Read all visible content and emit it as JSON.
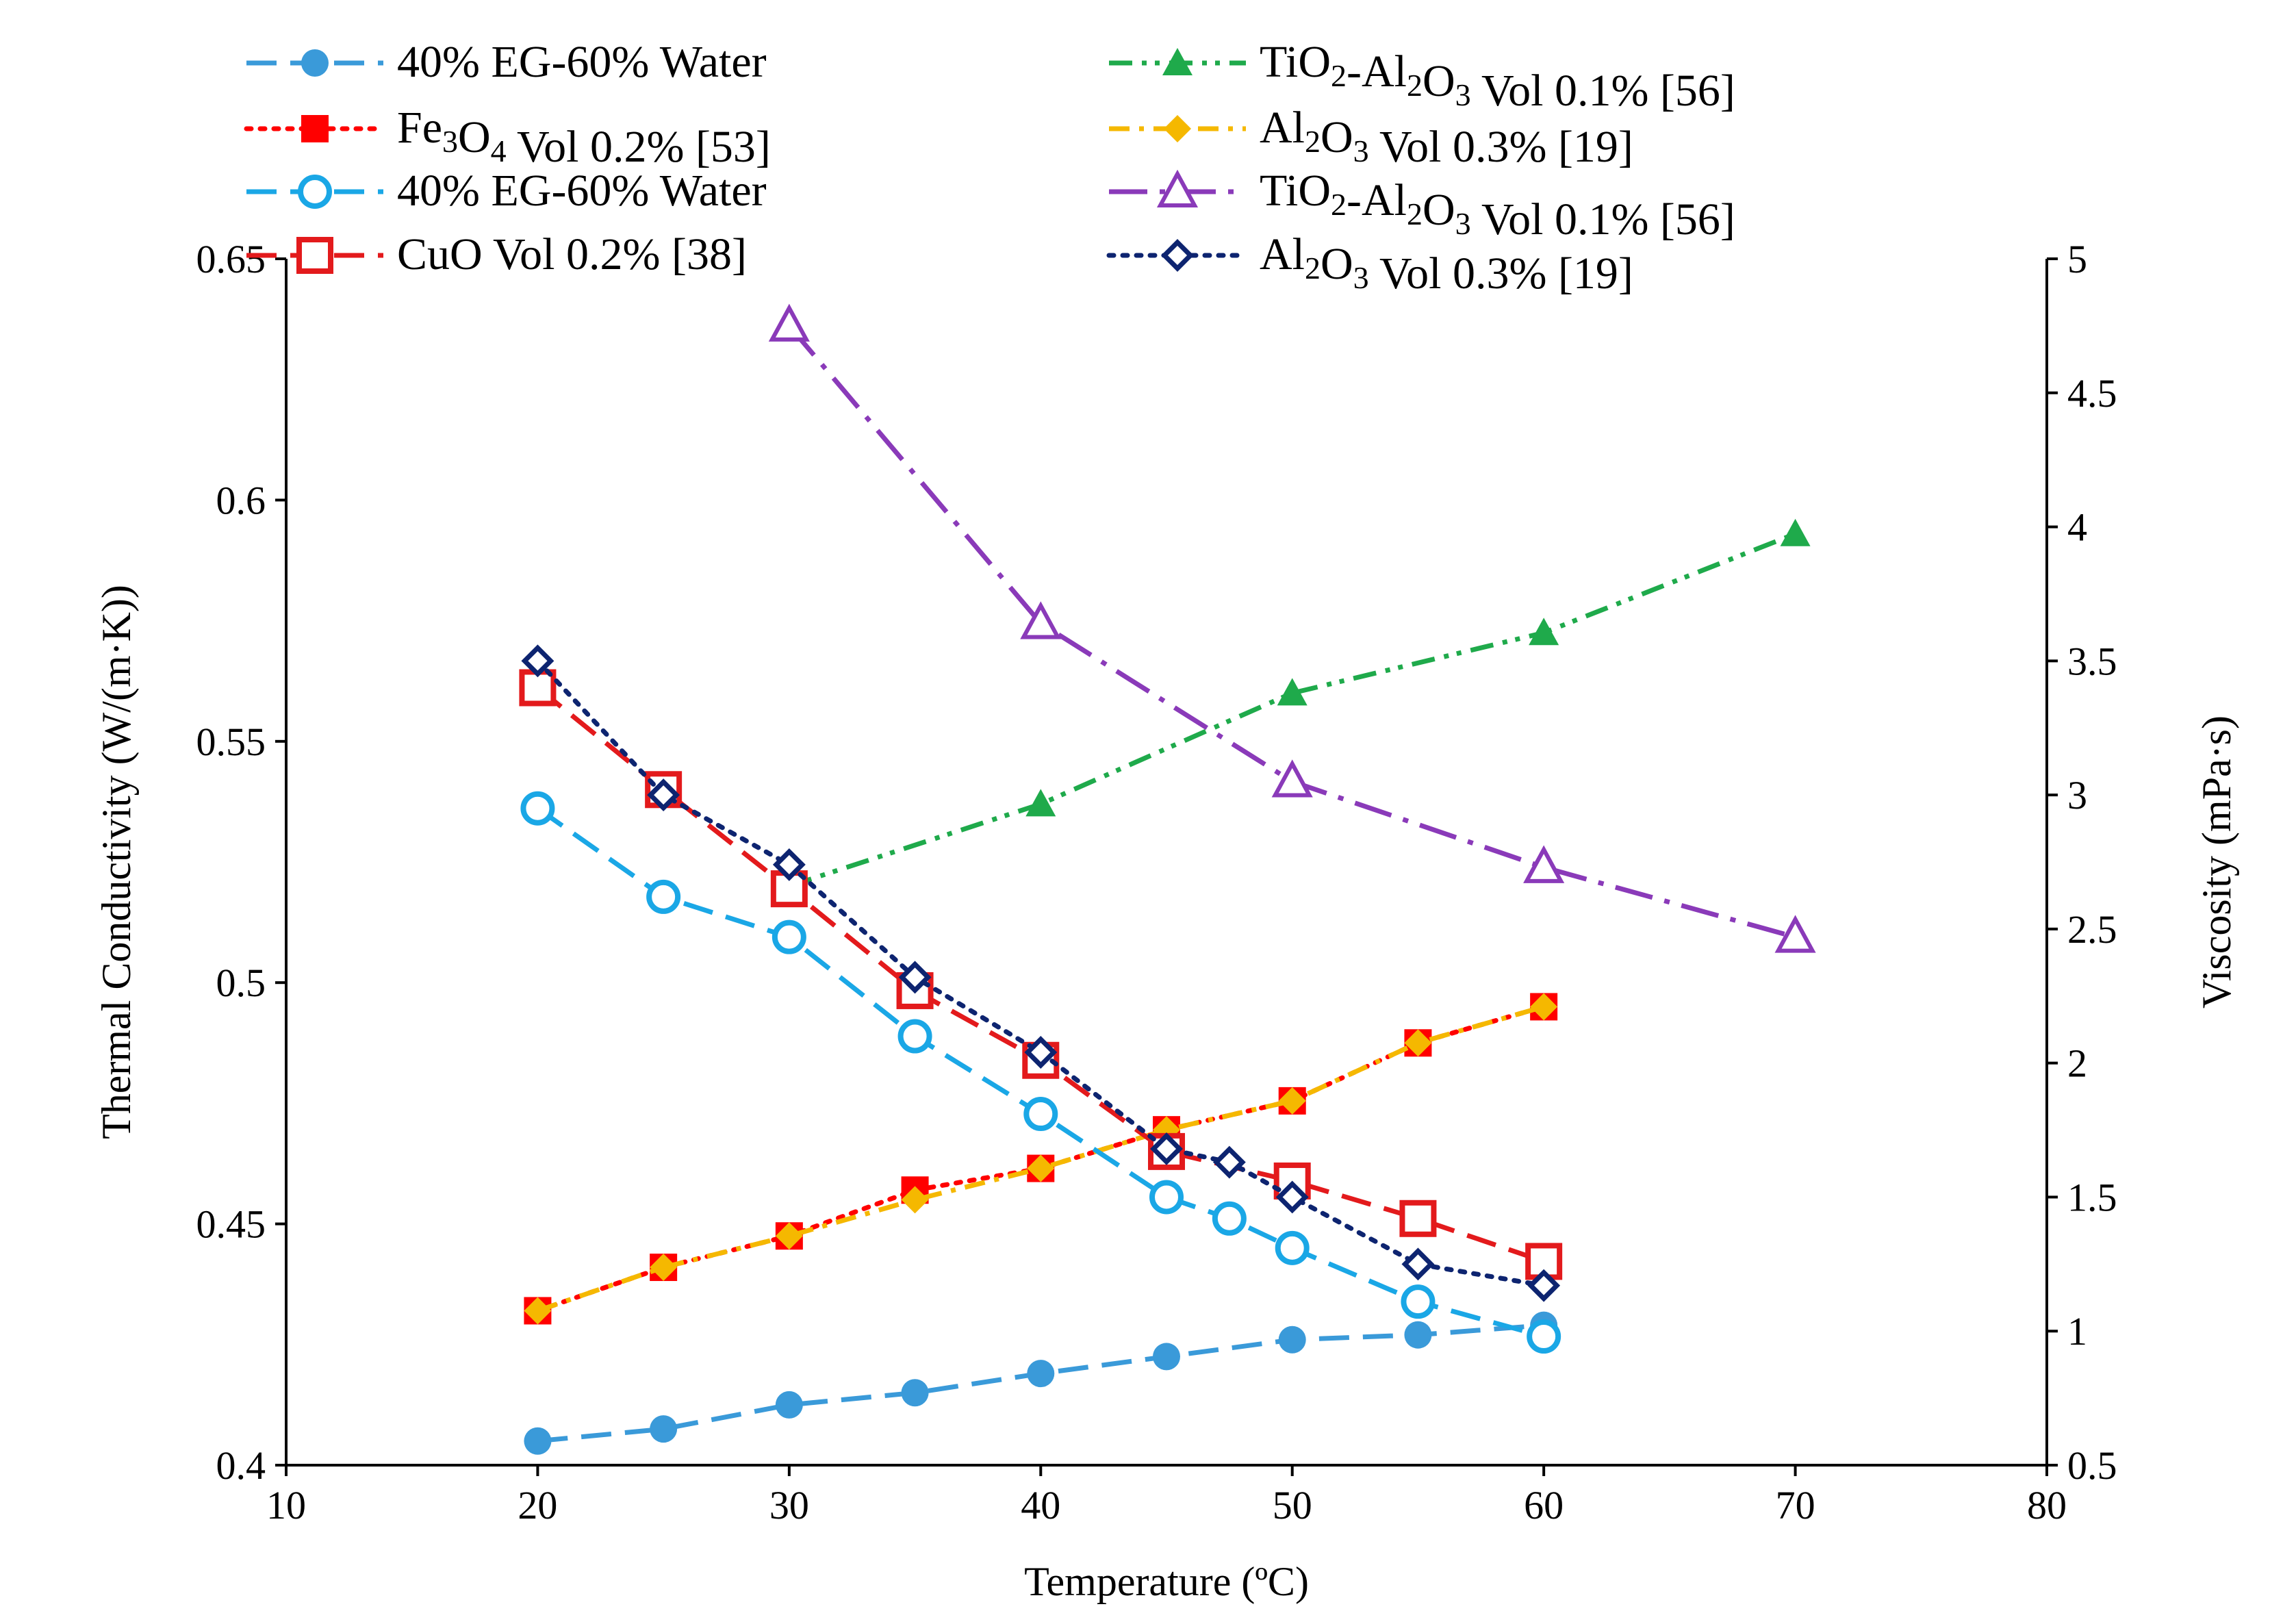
{
  "chart_data": {
    "type": "line",
    "title": "",
    "xlabel": "Temperature (ºC)",
    "ylabel": "Thermal Conductivity (W/(m·K))",
    "y2label": "Viscosity (mPa·s)",
    "xlim": [
      10,
      80
    ],
    "ylim": [
      0.4,
      0.65
    ],
    "y2lim": [
      0.5,
      5
    ],
    "x_ticks": [
      "10",
      "20",
      "30",
      "40",
      "50",
      "60",
      "70",
      "80"
    ],
    "y_ticks": [
      "0.4",
      "0.45",
      "0.5",
      "0.55",
      "0.6",
      "0.65"
    ],
    "y2_ticks": [
      "0.5",
      "1",
      "1.5",
      "2",
      "2.5",
      "3",
      "3.5",
      "4",
      "4.5",
      "5"
    ],
    "grid": false,
    "series": [
      {
        "name": "40% EG-60% Water",
        "axis": "left",
        "color": "#3a9ad9",
        "dash": "long-dash",
        "marker": "circle-filled",
        "x": [
          20,
          25,
          30,
          35,
          40,
          45,
          50,
          55,
          60
        ],
        "y": [
          0.405,
          0.4075,
          0.4125,
          0.415,
          0.419,
          0.4225,
          0.426,
          0.427,
          0.429
        ]
      },
      {
        "name": "Fe₃O₄ Vol 0.2% [53]",
        "axis": "left",
        "color": "#ff0000",
        "dash": "dot",
        "marker": "square-filled",
        "x": [
          20,
          25,
          30,
          35,
          40,
          45,
          50,
          55,
          60
        ],
        "y": [
          0.432,
          0.441,
          0.4475,
          0.457,
          0.4615,
          0.4695,
          0.4755,
          0.4875,
          0.495
        ]
      },
      {
        "name": "40% EG-60% Water",
        "axis": "right",
        "color": "#1aa7e6",
        "dash": "long-dash",
        "marker": "circle-open",
        "x": [
          20,
          25,
          30,
          35,
          40,
          45,
          47.5,
          50,
          55,
          60
        ],
        "y": [
          2.95,
          2.62,
          2.47,
          2.1,
          1.81,
          1.5,
          1.42,
          1.31,
          1.11,
          0.98
        ]
      },
      {
        "name": "CuO Vol 0.2% [38]",
        "axis": "right",
        "color": "#e31a1c",
        "dash": "long-dash",
        "marker": "square-open",
        "x": [
          20,
          25,
          30,
          35,
          40,
          45,
          50,
          55,
          60
        ],
        "y": [
          3.4,
          3.02,
          2.65,
          2.27,
          2.01,
          1.67,
          1.56,
          1.42,
          1.26
        ]
      },
      {
        "name": "TiO₂-Al₂O₃ Vol 0.1% [56]",
        "axis": "left",
        "color": "#1faa4b",
        "dash": "dash-dot-dot",
        "marker": "triangle-filled",
        "x": [
          30,
          40,
          50,
          60,
          70
        ],
        "y": [
          0.52,
          0.537,
          0.56,
          0.5725,
          0.593
        ]
      },
      {
        "name": "Al₂O₃ Vol 0.3% [19]",
        "axis": "left",
        "color": "#f5b800",
        "dash": "dash-dot",
        "marker": "diamond-filled",
        "x": [
          20,
          25,
          30,
          35,
          40,
          45,
          50,
          55,
          60
        ],
        "y": [
          0.432,
          0.441,
          0.4475,
          0.455,
          0.4615,
          0.4695,
          0.4755,
          0.4875,
          0.495
        ]
      },
      {
        "name": "TiO₂-Al₂O₃ Vol 0.1% [56]",
        "axis": "right",
        "color": "#8a3ab9",
        "dash": "long-dash-dot",
        "marker": "triangle-open",
        "x": [
          30,
          40,
          50,
          60,
          70
        ],
        "y": [
          4.75,
          3.64,
          3.05,
          2.73,
          2.47
        ]
      },
      {
        "name": "Al₂O₃ Vol 0.3% [19]",
        "axis": "right",
        "color": "#0d2470",
        "dash": "dot",
        "marker": "diamond-open",
        "x": [
          20,
          25,
          30,
          35,
          40,
          45,
          47.5,
          50,
          55,
          60
        ],
        "y": [
          3.5,
          3.0,
          2.74,
          2.32,
          2.04,
          1.68,
          1.63,
          1.5,
          1.25,
          1.17
        ]
      }
    ],
    "legend": {
      "placement": "top, two columns",
      "entries": [
        {
          "series": 0,
          "label": "40% EG-60% Water"
        },
        {
          "series": 1,
          "label": "Fe₃O₄ Vol 0.2% [53]"
        },
        {
          "series": 2,
          "label": "40% EG-60% Water"
        },
        {
          "series": 3,
          "label": "CuO Vol 0.2% [38]"
        },
        {
          "series": 4,
          "label": "TiO₂-Al₂O₃ Vol 0.1% [56]"
        },
        {
          "series": 5,
          "label": "Al₂O₃ Vol 0.3% [19]"
        },
        {
          "series": 6,
          "label": "TiO₂-Al₂O₃ Vol 0.1% [56]"
        },
        {
          "series": 7,
          "label": "Al₂O₃ Vol 0.3% [19]"
        }
      ]
    }
  }
}
